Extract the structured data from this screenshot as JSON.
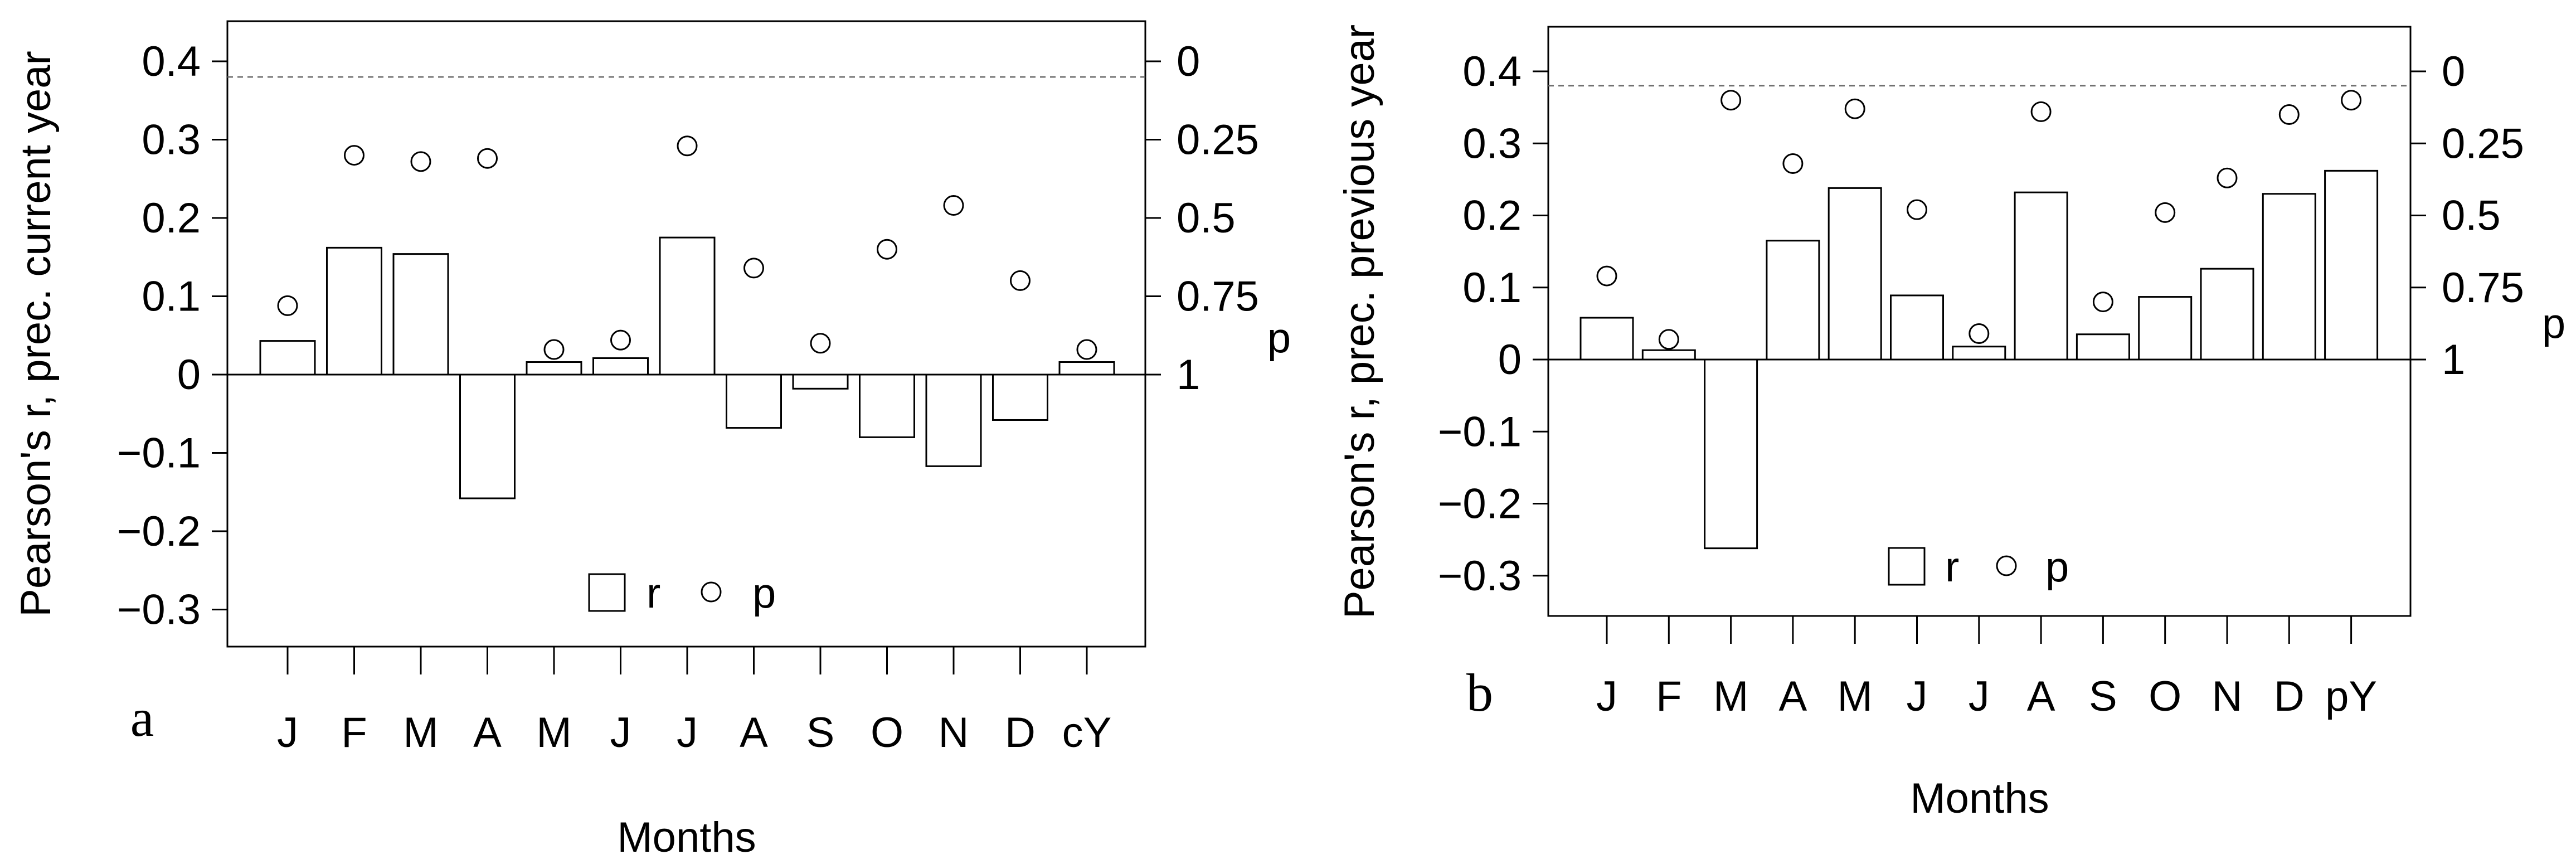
{
  "chart_data": [
    {
      "type": "bar",
      "panel_label": "a",
      "xlabel": "Months",
      "ylabel": "Pearson's r, prec. current year",
      "y2label": "p",
      "categories": [
        "J",
        "F",
        "M",
        "A",
        "M",
        "J",
        "J",
        "A",
        "S",
        "O",
        "N",
        "D",
        "cY"
      ],
      "ylim": [
        -0.35,
        0.45
      ],
      "yticks": [
        "0.4",
        "0.3",
        "0.2",
        "0.1",
        "0",
        "−0.1",
        "−0.2",
        "−0.3"
      ],
      "ytick_values": [
        0.4,
        0.3,
        0.2,
        0.1,
        0,
        -0.1,
        -0.2,
        -0.3
      ],
      "y2ticks": [
        "0",
        "0.25",
        "0.5",
        "0.75",
        "1"
      ],
      "y2tick_values": [
        0,
        0.25,
        0.5,
        0.75,
        1
      ],
      "p_axis_scale": "p = 1 at r = 0, p = 0 at r = 0.4",
      "significance_line_r": 0.38,
      "series": [
        {
          "name": "r",
          "kind": "bar",
          "values": [
            0.043,
            0.162,
            0.154,
            -0.158,
            0.016,
            0.021,
            0.175,
            -0.068,
            -0.018,
            -0.08,
            -0.117,
            -0.058,
            0.016
          ]
        },
        {
          "name": "p",
          "kind": "point",
          "values": [
            0.78,
            0.3,
            0.32,
            0.31,
            0.92,
            0.89,
            0.27,
            0.66,
            0.9,
            0.6,
            0.46,
            0.7,
            0.92
          ]
        }
      ],
      "legend": [
        {
          "label": "r",
          "symbol": "bar"
        },
        {
          "label": "p",
          "symbol": "point"
        }
      ],
      "legend_position": "bottom-center",
      "grid": false
    },
    {
      "type": "bar",
      "panel_label": "b",
      "xlabel": "Months",
      "ylabel": "Pearson's r, prec. previous year",
      "y2label": "p",
      "categories": [
        "J",
        "F",
        "M",
        "A",
        "M",
        "J",
        "J",
        "A",
        "S",
        "O",
        "N",
        "D",
        "pY"
      ],
      "ylim": [
        -0.35,
        0.45
      ],
      "yticks": [
        "0.4",
        "0.3",
        "0.2",
        "0.1",
        "0",
        "−0.1",
        "−0.2",
        "−0.3"
      ],
      "ytick_values": [
        0.4,
        0.3,
        0.2,
        0.1,
        0,
        -0.1,
        -0.2,
        -0.3
      ],
      "y2ticks": [
        "0",
        "0.25",
        "0.5",
        "0.75",
        "1"
      ],
      "y2tick_values": [
        0,
        0.25,
        0.5,
        0.75,
        1
      ],
      "p_axis_scale": "p = 1 at r = 0, p = 0 at r = 0.4",
      "significance_line_r": 0.38,
      "series": [
        {
          "name": "r",
          "kind": "bar",
          "values": [
            0.058,
            0.013,
            -0.262,
            0.165,
            0.238,
            0.089,
            0.018,
            0.232,
            0.035,
            0.087,
            0.126,
            0.23,
            0.262
          ]
        },
        {
          "name": "p",
          "kind": "point",
          "values": [
            0.71,
            0.93,
            0.1,
            0.32,
            0.13,
            0.48,
            0.91,
            0.14,
            0.8,
            0.49,
            0.37,
            0.15,
            0.1
          ]
        }
      ],
      "legend": [
        {
          "label": "r",
          "symbol": "bar"
        },
        {
          "label": "p",
          "symbol": "point"
        }
      ],
      "legend_position": "bottom-center",
      "grid": false
    }
  ]
}
